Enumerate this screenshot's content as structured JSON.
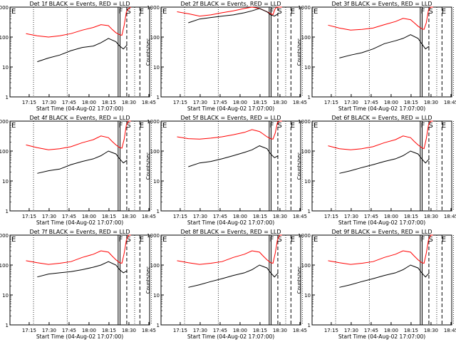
{
  "chart_data": [
    {
      "type": "line",
      "title": "Det 1f BLACK = Events, RED = LLD",
      "xlabel": "Start Time (04-Aug-02 17:07:00)",
      "ylabel": "Counts/sec",
      "x_tick_labels": [
        "17:15",
        "17:30",
        "17:45",
        "18:00",
        "18:15",
        "18:30",
        "18:45"
      ],
      "y_tick_labels": [
        "1",
        "10",
        "100",
        "1000"
      ],
      "ylim": [
        1,
        1000
      ],
      "y_scale": "log",
      "markers": [
        "F",
        "S",
        "E"
      ],
      "series": [
        {
          "color": "#ff0000",
          "x": [
            0,
            3,
            6,
            9,
            12,
            15,
            18,
            20,
            22,
            23,
            24,
            25,
            25.6,
            26.2,
            26.8,
            27.4,
            28
          ],
          "y": [
            130,
            110,
            100,
            110,
            130,
            170,
            210,
            260,
            240,
            180,
            140,
            120,
            115,
            250,
            700,
            900,
            1000
          ]
        },
        {
          "color": "#000000",
          "x": [
            3,
            6,
            9,
            12,
            15,
            18,
            20,
            22,
            24,
            25,
            26,
            27
          ],
          "y": [
            15,
            20,
            25,
            35,
            45,
            50,
            65,
            90,
            70,
            50,
            40,
            55
          ]
        }
      ]
    },
    {
      "type": "line",
      "title": "Det 2f BLACK = Events, RED = LLD",
      "xlabel": "Start Time (04-Aug-02 17:07:00)",
      "ylabel": "Counts/sec",
      "x_tick_labels": [
        "17:15",
        "17:30",
        "17:45",
        "18:00",
        "18:15",
        "18:30",
        "18:45"
      ],
      "y_tick_labels": [
        "1",
        "10",
        "100",
        "1000"
      ],
      "ylim": [
        1,
        1000
      ],
      "y_scale": "log",
      "markers": [
        "F",
        "S",
        "E"
      ],
      "series": [
        {
          "color": "#ff0000",
          "x": [
            0,
            3,
            6,
            9,
            12,
            15,
            18,
            20,
            22,
            23,
            24,
            25,
            25.6,
            26.2,
            26.8,
            27.4,
            28
          ],
          "y": [
            700,
            600,
            500,
            550,
            650,
            750,
            900,
            1000,
            900,
            800,
            700,
            600,
            560,
            900,
            1000,
            1000,
            1000
          ]
        },
        {
          "color": "#000000",
          "x": [
            3,
            6,
            9,
            12,
            15,
            18,
            20,
            22,
            24,
            25,
            26,
            27
          ],
          "y": [
            300,
            400,
            450,
            500,
            550,
            650,
            750,
            900,
            700,
            550,
            500,
            600
          ]
        }
      ]
    },
    {
      "type": "line",
      "title": "Det 3f BLACK = Events, RED = LLD",
      "xlabel": "Start Time (04-Aug-02 17:07:00)",
      "ylabel": "Counts/sec",
      "x_tick_labels": [
        "17:15",
        "17:30",
        "17:45",
        "18:00",
        "18:15",
        "18:30",
        "18:45"
      ],
      "y_tick_labels": [
        "1",
        "10",
        "100",
        "1000"
      ],
      "ylim": [
        1,
        1000
      ],
      "y_scale": "log",
      "markers": [
        "F",
        "S",
        "E"
      ],
      "series": [
        {
          "color": "#ff0000",
          "x": [
            0,
            3,
            6,
            9,
            12,
            15,
            18,
            20,
            22,
            23,
            24,
            25,
            25.6,
            26.2,
            26.8,
            27.4,
            28
          ],
          "y": [
            250,
            200,
            170,
            180,
            200,
            260,
            330,
            420,
            380,
            300,
            230,
            190,
            180,
            300,
            800,
            1000,
            1000
          ]
        },
        {
          "color": "#000000",
          "x": [
            3,
            6,
            9,
            12,
            15,
            18,
            20,
            22,
            24,
            25,
            26,
            27
          ],
          "y": [
            20,
            25,
            30,
            40,
            60,
            75,
            90,
            120,
            90,
            60,
            40,
            50
          ]
        }
      ]
    },
    {
      "type": "line",
      "title": "Det 4f BLACK = Events, RED = LLD",
      "xlabel": "Start Time (04-Aug-02 17:07:00)",
      "ylabel": "Counts/sec",
      "x_tick_labels": [
        "17:15",
        "17:30",
        "17:45",
        "18:00",
        "18:15",
        "18:30",
        "18:45"
      ],
      "y_tick_labels": [
        "1",
        "10",
        "100",
        "1000"
      ],
      "ylim": [
        1,
        1000
      ],
      "y_scale": "log",
      "markers": [
        "F",
        "S",
        "E"
      ],
      "series": [
        {
          "color": "#ff0000",
          "x": [
            0,
            3,
            6,
            9,
            12,
            15,
            18,
            20,
            22,
            23,
            24,
            25,
            25.6,
            26.2,
            26.8,
            27.4,
            28
          ],
          "y": [
            160,
            130,
            110,
            120,
            140,
            190,
            240,
            320,
            280,
            210,
            160,
            130,
            125,
            250,
            750,
            1000,
            1000
          ]
        },
        {
          "color": "#000000",
          "x": [
            3,
            6,
            9,
            12,
            15,
            18,
            20,
            22,
            24,
            25,
            26,
            27
          ],
          "y": [
            18,
            22,
            25,
            35,
            45,
            55,
            70,
            100,
            80,
            55,
            40,
            50
          ]
        }
      ]
    },
    {
      "type": "line",
      "title": "Det 5f BLACK = Events, RED = LLD",
      "xlabel": "Start Time (04-Aug-02 17:07:00)",
      "ylabel": "Counts/sec",
      "x_tick_labels": [
        "17:15",
        "17:30",
        "17:45",
        "18:00",
        "18:15",
        "18:30",
        "18:45"
      ],
      "y_tick_labels": [
        "1",
        "10",
        "100",
        "1000"
      ],
      "ylim": [
        1,
        1000
      ],
      "y_scale": "log",
      "markers": [
        "F",
        "S",
        "E"
      ],
      "series": [
        {
          "color": "#ff0000",
          "x": [
            0,
            3,
            6,
            9,
            12,
            15,
            18,
            20,
            22,
            23,
            24,
            25,
            25.6,
            26.2,
            26.8,
            27.4,
            28
          ],
          "y": [
            300,
            260,
            250,
            270,
            300,
            350,
            420,
            520,
            450,
            370,
            300,
            260,
            250,
            400,
            900,
            1000,
            1000
          ]
        },
        {
          "color": "#000000",
          "x": [
            3,
            6,
            9,
            12,
            15,
            18,
            20,
            22,
            24,
            25,
            26,
            27
          ],
          "y": [
            30,
            40,
            45,
            55,
            70,
            90,
            110,
            150,
            120,
            80,
            60,
            70
          ]
        }
      ]
    },
    {
      "type": "line",
      "title": "Det 6f BLACK = Events, RED = LLD",
      "xlabel": "Start Time (04-Aug-02 17:07:00)",
      "ylabel": "Counts/sec",
      "x_tick_labels": [
        "17:15",
        "17:30",
        "17:45",
        "18:00",
        "18:15",
        "18:30",
        "18:45"
      ],
      "y_tick_labels": [
        "1",
        "10",
        "100",
        "1000"
      ],
      "ylim": [
        1,
        1000
      ],
      "y_scale": "log",
      "markers": [
        "F",
        "S",
        "E"
      ],
      "series": [
        {
          "color": "#ff0000",
          "x": [
            0,
            3,
            6,
            9,
            12,
            15,
            18,
            20,
            22,
            23,
            24,
            25,
            25.6,
            26.2,
            26.8,
            27.4,
            28
          ],
          "y": [
            150,
            120,
            110,
            120,
            140,
            190,
            240,
            320,
            280,
            210,
            160,
            130,
            120,
            260,
            750,
            1000,
            1000
          ]
        },
        {
          "color": "#000000",
          "x": [
            3,
            6,
            9,
            12,
            15,
            18,
            20,
            22,
            24,
            25,
            26,
            27
          ],
          "y": [
            18,
            22,
            28,
            35,
            45,
            55,
            70,
            100,
            80,
            55,
            40,
            55
          ]
        }
      ]
    },
    {
      "type": "line",
      "title": "Det 7f BLACK = Events, RED = LLD",
      "xlabel": "Start Time (04-Aug-02 17:07:00)",
      "ylabel": "Counts/sec",
      "x_tick_labels": [
        "17:15",
        "17:30",
        "17:45",
        "18:00",
        "18:15",
        "18:30",
        "18:45"
      ],
      "y_tick_labels": [
        "1",
        "10",
        "100",
        "1000"
      ],
      "ylim": [
        1,
        1000
      ],
      "y_scale": "log",
      "markers": [
        "F",
        "S",
        "E"
      ],
      "series": [
        {
          "color": "#ff0000",
          "x": [
            0,
            3,
            6,
            9,
            12,
            15,
            18,
            20,
            22,
            23,
            24,
            25,
            25.6,
            26.2,
            26.8,
            27.4,
            28
          ],
          "y": [
            140,
            120,
            105,
            115,
            130,
            180,
            230,
            300,
            270,
            200,
            150,
            120,
            115,
            250,
            700,
            1000,
            1000
          ]
        },
        {
          "color": "#000000",
          "x": [
            3,
            6,
            9,
            12,
            15,
            18,
            20,
            22,
            24,
            25,
            26,
            27
          ],
          "y": [
            40,
            50,
            55,
            60,
            70,
            85,
            100,
            130,
            100,
            70,
            55,
            65
          ]
        }
      ]
    },
    {
      "type": "line",
      "title": "Det 8f BLACK = Events, RED = LLD",
      "xlabel": "Start Time (04-Aug-02 17:07:00)",
      "ylabel": "Counts/sec",
      "x_tick_labels": [
        "17:15",
        "17:30",
        "17:45",
        "18:00",
        "18:15",
        "18:30",
        "18:45"
      ],
      "y_tick_labels": [
        "1",
        "10",
        "100",
        "1000"
      ],
      "ylim": [
        1,
        1000
      ],
      "y_scale": "log",
      "markers": [
        "F",
        "S",
        "E"
      ],
      "series": [
        {
          "color": "#ff0000",
          "x": [
            0,
            3,
            6,
            9,
            12,
            15,
            18,
            20,
            22,
            23,
            24,
            25,
            25.6,
            26.2,
            26.8,
            27.4,
            28
          ],
          "y": [
            140,
            120,
            105,
            115,
            130,
            180,
            230,
            300,
            270,
            200,
            150,
            120,
            115,
            250,
            700,
            1000,
            1000
          ]
        },
        {
          "color": "#000000",
          "x": [
            3,
            6,
            9,
            12,
            15,
            18,
            20,
            22,
            24,
            25,
            26,
            27
          ],
          "y": [
            18,
            22,
            28,
            35,
            45,
            55,
            70,
            100,
            80,
            55,
            40,
            55
          ]
        }
      ]
    },
    {
      "type": "line",
      "title": "Det 9f BLACK = Events, RED = LLD",
      "xlabel": "Start Time (04-Aug-02 17:07:00)",
      "ylabel": "Counts/sec",
      "x_tick_labels": [
        "17:15",
        "17:30",
        "17:45",
        "18:00",
        "18:15",
        "18:30",
        "18:45"
      ],
      "y_tick_labels": [
        "1",
        "10",
        "100",
        "1000"
      ],
      "ylim": [
        1,
        1000
      ],
      "y_scale": "log",
      "markers": [
        "F",
        "S",
        "E"
      ],
      "series": [
        {
          "color": "#ff0000",
          "x": [
            0,
            3,
            6,
            9,
            12,
            15,
            18,
            20,
            22,
            23,
            24,
            25,
            25.6,
            26.2,
            26.8,
            27.4,
            28
          ],
          "y": [
            140,
            120,
            105,
            115,
            130,
            180,
            230,
            300,
            270,
            200,
            150,
            120,
            115,
            250,
            700,
            1000,
            1000
          ]
        },
        {
          "color": "#000000",
          "x": [
            3,
            6,
            9,
            12,
            15,
            18,
            20,
            22,
            24,
            25,
            26,
            27
          ],
          "y": [
            18,
            22,
            28,
            35,
            45,
            55,
            70,
            100,
            80,
            55,
            40,
            55
          ]
        }
      ]
    }
  ]
}
